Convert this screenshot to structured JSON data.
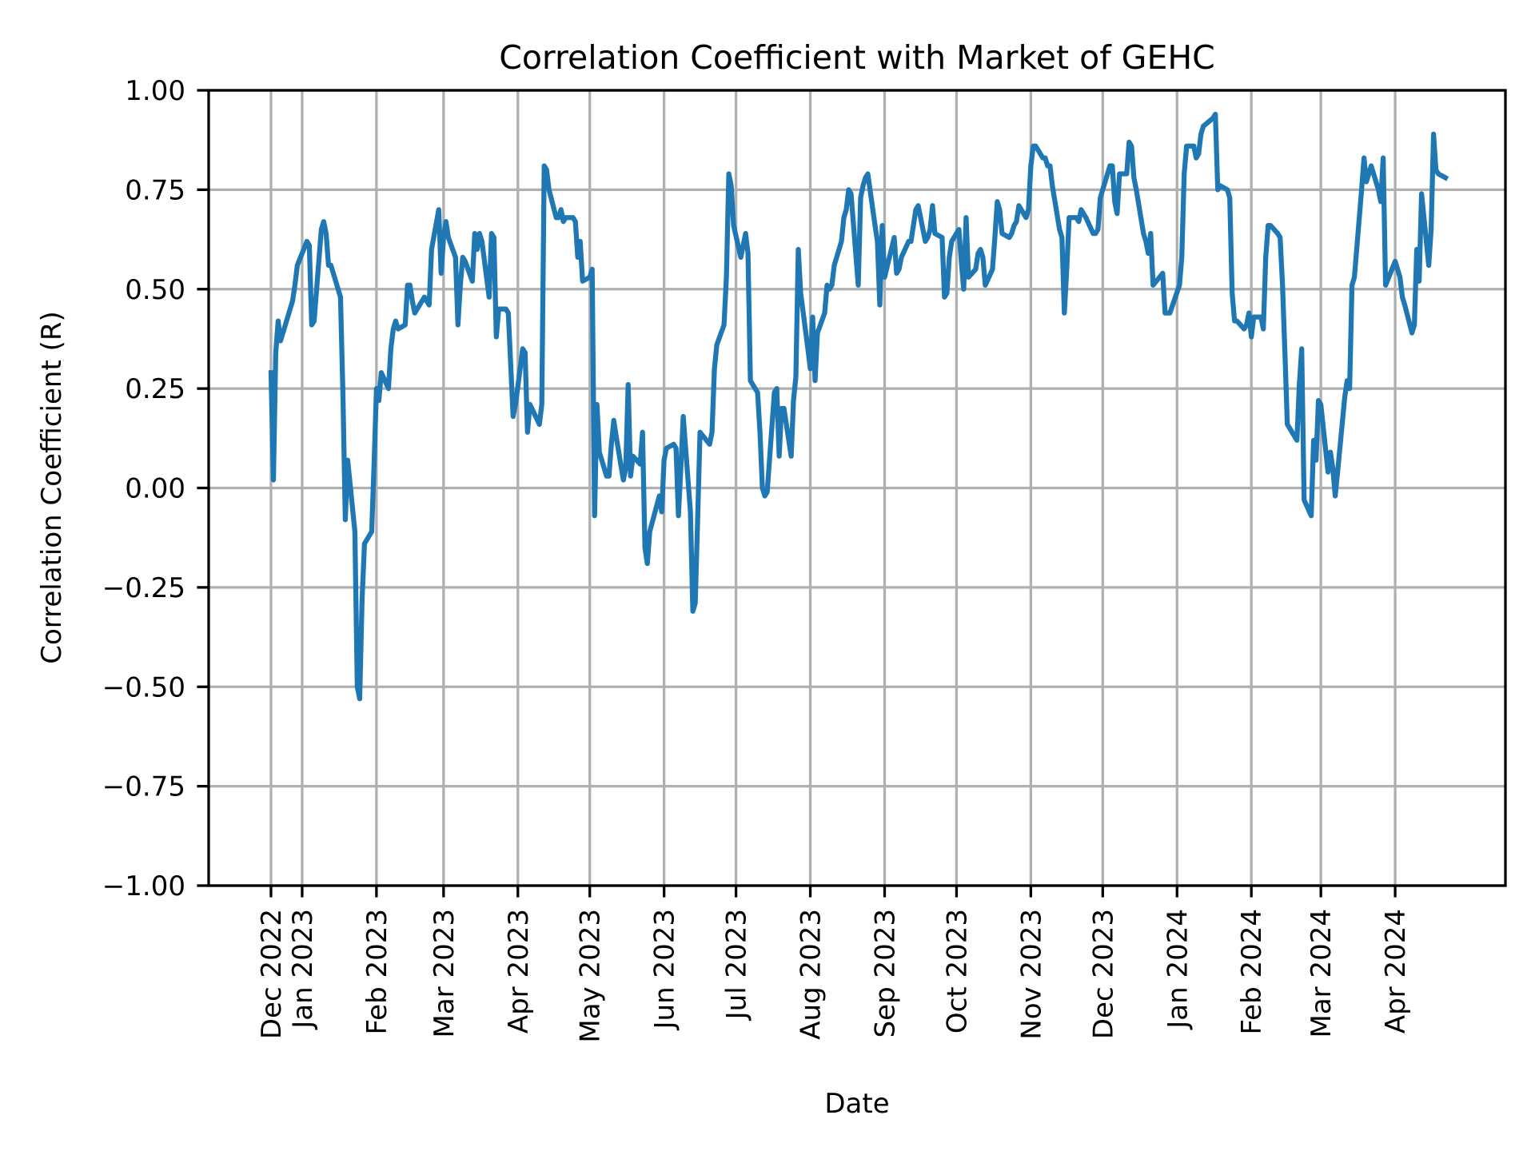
{
  "chart_data": {
    "type": "line",
    "title": "Correlation Coefficient with Market of GEHC",
    "xlabel": "Date",
    "ylabel": "Correlation Coefficient (R)",
    "xlim": [
      "2022-11-23",
      "2024-05-17"
    ],
    "ylim": [
      -1.0,
      1.0
    ],
    "grid": true,
    "line_color": "#1f77b4",
    "y_ticks": [
      {
        "value": 1.0,
        "label": "1.00"
      },
      {
        "value": 0.75,
        "label": "0.75"
      },
      {
        "value": 0.5,
        "label": "0.50"
      },
      {
        "value": 0.25,
        "label": "0.25"
      },
      {
        "value": 0.0,
        "label": "0.00"
      },
      {
        "value": -0.25,
        "label": "−0.25"
      },
      {
        "value": -0.5,
        "label": "−0.50"
      },
      {
        "value": -0.75,
        "label": "−0.75"
      },
      {
        "value": -1.0,
        "label": "−1.00"
      }
    ],
    "x_ticks": [
      {
        "date": "2022-12-19",
        "label": "Dec 2022"
      },
      {
        "date": "2023-01-01",
        "label": "Jan 2023"
      },
      {
        "date": "2023-02-01",
        "label": "Feb 2023"
      },
      {
        "date": "2023-03-01",
        "label": "Mar 2023"
      },
      {
        "date": "2023-04-01",
        "label": "Apr 2023"
      },
      {
        "date": "2023-05-01",
        "label": "May 2023"
      },
      {
        "date": "2023-06-01",
        "label": "Jun 2023"
      },
      {
        "date": "2023-07-01",
        "label": "Jul 2023"
      },
      {
        "date": "2023-08-01",
        "label": "Aug 2023"
      },
      {
        "date": "2023-09-01",
        "label": "Sep 2023"
      },
      {
        "date": "2023-10-01",
        "label": "Oct 2023"
      },
      {
        "date": "2023-11-01",
        "label": "Nov 2023"
      },
      {
        "date": "2023-12-01",
        "label": "Dec 2023"
      },
      {
        "date": "2024-01-01",
        "label": "Jan 2024"
      },
      {
        "date": "2024-02-01",
        "label": "Feb 2024"
      },
      {
        "date": "2024-03-01",
        "label": "Mar 2024"
      },
      {
        "date": "2024-04-01",
        "label": "Apr 2024"
      }
    ],
    "x": [
      "2022-12-19",
      "2022-12-20",
      "2022-12-21",
      "2022-12-22",
      "2022-12-23",
      "2022-12-27",
      "2022-12-28",
      "2022-12-29",
      "2022-12-30",
      "2023-01-03",
      "2023-01-04",
      "2023-01-05",
      "2023-01-06",
      "2023-01-09",
      "2023-01-10",
      "2023-01-11",
      "2023-01-12",
      "2023-01-13",
      "2023-01-17",
      "2023-01-18",
      "2023-01-19",
      "2023-01-20",
      "2023-01-23",
      "2023-01-24",
      "2023-01-25",
      "2023-01-26",
      "2023-01-27",
      "2023-01-30",
      "2023-01-31",
      "2023-02-01",
      "2023-02-02",
      "2023-02-03",
      "2023-02-06",
      "2023-02-07",
      "2023-02-08",
      "2023-02-09",
      "2023-02-10",
      "2023-02-13",
      "2023-02-14",
      "2023-02-15",
      "2023-02-16",
      "2023-02-17",
      "2023-02-21",
      "2023-02-22",
      "2023-02-23",
      "2023-02-24",
      "2023-02-27",
      "2023-02-28",
      "2023-03-01",
      "2023-03-02",
      "2023-03-03",
      "2023-03-06",
      "2023-03-07",
      "2023-03-08",
      "2023-03-09",
      "2023-03-10",
      "2023-03-13",
      "2023-03-14",
      "2023-03-15",
      "2023-03-16",
      "2023-03-17",
      "2023-03-20",
      "2023-03-21",
      "2023-03-22",
      "2023-03-23",
      "2023-03-24",
      "2023-03-27",
      "2023-03-28",
      "2023-03-29",
      "2023-03-30",
      "2023-03-31",
      "2023-04-03",
      "2023-04-04",
      "2023-04-05",
      "2023-04-06",
      "2023-04-10",
      "2023-04-11",
      "2023-04-12",
      "2023-04-13",
      "2023-04-14",
      "2023-04-17",
      "2023-04-18",
      "2023-04-19",
      "2023-04-20",
      "2023-04-21",
      "2023-04-24",
      "2023-04-25",
      "2023-04-26",
      "2023-04-27",
      "2023-04-28",
      "2023-05-01",
      "2023-05-02",
      "2023-05-03",
      "2023-05-04",
      "2023-05-05",
      "2023-05-08",
      "2023-05-09",
      "2023-05-10",
      "2023-05-11",
      "2023-05-12",
      "2023-05-15",
      "2023-05-16",
      "2023-05-17",
      "2023-05-18",
      "2023-05-19",
      "2023-05-22",
      "2023-05-23",
      "2023-05-24",
      "2023-05-25",
      "2023-05-26",
      "2023-05-30",
      "2023-05-31",
      "2023-06-01",
      "2023-06-02",
      "2023-06-05",
      "2023-06-06",
      "2023-06-07",
      "2023-06-08",
      "2023-06-09",
      "2023-06-12",
      "2023-06-13",
      "2023-06-14",
      "2023-06-15",
      "2023-06-16",
      "2023-06-20",
      "2023-06-21",
      "2023-06-22",
      "2023-06-23",
      "2023-06-26",
      "2023-06-27",
      "2023-06-28",
      "2023-06-29",
      "2023-06-30",
      "2023-07-03",
      "2023-07-05",
      "2023-07-06",
      "2023-07-07",
      "2023-07-10",
      "2023-07-11",
      "2023-07-12",
      "2023-07-13",
      "2023-07-14",
      "2023-07-17",
      "2023-07-18",
      "2023-07-19",
      "2023-07-20",
      "2023-07-21",
      "2023-07-24",
      "2023-07-25",
      "2023-07-26",
      "2023-07-27",
      "2023-07-28",
      "2023-07-31",
      "2023-08-01",
      "2023-08-02",
      "2023-08-03",
      "2023-08-04",
      "2023-08-07",
      "2023-08-08",
      "2023-08-09",
      "2023-08-10",
      "2023-08-11",
      "2023-08-14",
      "2023-08-15",
      "2023-08-16",
      "2023-08-17",
      "2023-08-18",
      "2023-08-21",
      "2023-08-22",
      "2023-08-23",
      "2023-08-24",
      "2023-08-25",
      "2023-08-28",
      "2023-08-29",
      "2023-08-30",
      "2023-08-31",
      "2023-09-01",
      "2023-09-05",
      "2023-09-06",
      "2023-09-07",
      "2023-09-08",
      "2023-09-11",
      "2023-09-12",
      "2023-09-13",
      "2023-09-14",
      "2023-09-15",
      "2023-09-18",
      "2023-09-19",
      "2023-09-20",
      "2023-09-21",
      "2023-09-22",
      "2023-09-25",
      "2023-09-26",
      "2023-09-27",
      "2023-09-28",
      "2023-09-29",
      "2023-10-02",
      "2023-10-03",
      "2023-10-04",
      "2023-10-05",
      "2023-10-06",
      "2023-10-09",
      "2023-10-10",
      "2023-10-11",
      "2023-10-12",
      "2023-10-13",
      "2023-10-16",
      "2023-10-17",
      "2023-10-18",
      "2023-10-19",
      "2023-10-20",
      "2023-10-23",
      "2023-10-24",
      "2023-10-25",
      "2023-10-26",
      "2023-10-27",
      "2023-10-30",
      "2023-10-31",
      "2023-11-01",
      "2023-11-02",
      "2023-11-03",
      "2023-11-06",
      "2023-11-07",
      "2023-11-08",
      "2023-11-09",
      "2023-11-10",
      "2023-11-13",
      "2023-11-14",
      "2023-11-15",
      "2023-11-16",
      "2023-11-17",
      "2023-11-20",
      "2023-11-21",
      "2023-11-22",
      "2023-11-24",
      "2023-11-27",
      "2023-11-28",
      "2023-11-29",
      "2023-11-30",
      "2023-12-01",
      "2023-12-04",
      "2023-12-05",
      "2023-12-06",
      "2023-12-07",
      "2023-12-08",
      "2023-12-11",
      "2023-12-12",
      "2023-12-13",
      "2023-12-14",
      "2023-12-15",
      "2023-12-18",
      "2023-12-19",
      "2023-12-20",
      "2023-12-21",
      "2023-12-22",
      "2023-12-26",
      "2023-12-27",
      "2023-12-28",
      "2023-12-29",
      "2024-01-02",
      "2024-01-03",
      "2024-01-04",
      "2024-01-05",
      "2024-01-08",
      "2024-01-09",
      "2024-01-10",
      "2024-01-11",
      "2024-01-12",
      "2024-01-16",
      "2024-01-17",
      "2024-01-18",
      "2024-01-19",
      "2024-01-22",
      "2024-01-23",
      "2024-01-24",
      "2024-01-25",
      "2024-01-26",
      "2024-01-29",
      "2024-01-30",
      "2024-01-31",
      "2024-02-01",
      "2024-02-02",
      "2024-02-05",
      "2024-02-06",
      "2024-02-07",
      "2024-02-08",
      "2024-02-09",
      "2024-02-12",
      "2024-02-13",
      "2024-02-14",
      "2024-02-15",
      "2024-02-16",
      "2024-02-20",
      "2024-02-21",
      "2024-02-22",
      "2024-02-23",
      "2024-02-26",
      "2024-02-27",
      "2024-02-28",
      "2024-02-29",
      "2024-03-01",
      "2024-03-04",
      "2024-03-05",
      "2024-03-06",
      "2024-03-07",
      "2024-03-08",
      "2024-03-11",
      "2024-03-12",
      "2024-03-13",
      "2024-03-14",
      "2024-03-15",
      "2024-03-18",
      "2024-03-19",
      "2024-03-20",
      "2024-03-21",
      "2024-03-22",
      "2024-03-25",
      "2024-03-26",
      "2024-03-27",
      "2024-03-28",
      "2024-04-01",
      "2024-04-02",
      "2024-04-03",
      "2024-04-04",
      "2024-04-05",
      "2024-04-08",
      "2024-04-09",
      "2024-04-10",
      "2024-04-11",
      "2024-04-12",
      "2024-04-15",
      "2024-04-16",
      "2024-04-17",
      "2024-04-18",
      "2024-04-19",
      "2024-04-22"
    ],
    "y": [
      0.29,
      0.02,
      0.34,
      0.42,
      0.37,
      0.45,
      0.47,
      0.51,
      0.56,
      0.62,
      0.61,
      0.41,
      0.42,
      0.65,
      0.67,
      0.64,
      0.56,
      0.56,
      0.48,
      0.24,
      -0.08,
      0.07,
      -0.11,
      -0.5,
      -0.53,
      -0.28,
      -0.14,
      -0.11,
      0.06,
      0.25,
      0.22,
      0.29,
      0.25,
      0.35,
      0.4,
      0.42,
      0.4,
      0.41,
      0.51,
      0.51,
      0.47,
      0.44,
      0.48,
      0.47,
      0.46,
      0.6,
      0.7,
      0.54,
      0.63,
      0.67,
      0.63,
      0.58,
      0.41,
      0.51,
      0.58,
      0.57,
      0.52,
      0.64,
      0.6,
      0.64,
      0.62,
      0.48,
      0.64,
      0.63,
      0.38,
      0.45,
      0.45,
      0.44,
      0.31,
      0.18,
      0.21,
      0.35,
      0.34,
      0.14,
      0.21,
      0.16,
      0.21,
      0.81,
      0.8,
      0.75,
      0.68,
      0.68,
      0.7,
      0.67,
      0.68,
      0.68,
      0.67,
      0.58,
      0.62,
      0.52,
      0.53,
      0.55,
      -0.07,
      0.21,
      0.09,
      0.03,
      0.03,
      0.11,
      0.17,
      0.13,
      0.02,
      0.05,
      0.26,
      0.03,
      0.08,
      0.06,
      0.14,
      -0.15,
      -0.19,
      -0.11,
      -0.02,
      -0.06,
      0.07,
      0.1,
      0.11,
      0.1,
      -0.07,
      0.05,
      0.18,
      -0.06,
      -0.31,
      -0.29,
      -0.08,
      0.14,
      0.11,
      0.14,
      0.3,
      0.36,
      0.41,
      0.53,
      0.79,
      0.76,
      0.66,
      0.58,
      0.64,
      0.59,
      0.27,
      0.24,
      0.14,
      0.0,
      -0.02,
      -0.01,
      0.24,
      0.25,
      0.08,
      0.2,
      0.2,
      0.08,
      0.22,
      0.28,
      0.6,
      0.49,
      0.35,
      0.3,
      0.43,
      0.27,
      0.39,
      0.44,
      0.51,
      0.5,
      0.51,
      0.56,
      0.62,
      0.68,
      0.7,
      0.75,
      0.74,
      0.51,
      0.73,
      0.76,
      0.78,
      0.79,
      0.66,
      0.62,
      0.46,
      0.66,
      0.53,
      0.63,
      0.54,
      0.55,
      0.58,
      0.62,
      0.62,
      0.66,
      0.7,
      0.71,
      0.62,
      0.63,
      0.65,
      0.71,
      0.64,
      0.63,
      0.48,
      0.49,
      0.58,
      0.62,
      0.65,
      0.57,
      0.5,
      0.68,
      0.53,
      0.55,
      0.59,
      0.6,
      0.58,
      0.51,
      0.55,
      0.63,
      0.72,
      0.7,
      0.64,
      0.63,
      0.64,
      0.66,
      0.67,
      0.71,
      0.68,
      0.7,
      0.81,
      0.86,
      0.86,
      0.83,
      0.83,
      0.81,
      0.81,
      0.76,
      0.65,
      0.63,
      0.44,
      0.55,
      0.68,
      0.68,
      0.67,
      0.7,
      0.68,
      0.64,
      0.64,
      0.65,
      0.73,
      0.75,
      0.81,
      0.81,
      0.72,
      0.69,
      0.79,
      0.79,
      0.87,
      0.86,
      0.78,
      0.75,
      0.64,
      0.62,
      0.59,
      0.64,
      0.51,
      0.54,
      0.44,
      0.44,
      0.44,
      0.51,
      0.58,
      0.79,
      0.86,
      0.86,
      0.83,
      0.84,
      0.89,
      0.91,
      0.93,
      0.94,
      0.75,
      0.76,
      0.75,
      0.73,
      0.49,
      0.42,
      0.42,
      0.4,
      0.41,
      0.44,
      0.38,
      0.43,
      0.43,
      0.4,
      0.58,
      0.66,
      0.66,
      0.64,
      0.63,
      0.51,
      0.34,
      0.16,
      0.12,
      0.26,
      0.35,
      -0.03,
      -0.07,
      0.12,
      0.07,
      0.22,
      0.21,
      0.04,
      0.09,
      0.05,
      -0.02,
      0.04,
      0.23,
      0.27,
      0.25,
      0.51,
      0.53,
      0.75,
      0.83,
      0.77,
      0.79,
      0.81,
      0.75,
      0.72,
      0.83,
      0.51,
      0.57,
      0.55,
      0.53,
      0.48,
      0.46,
      0.39,
      0.41,
      0.6,
      0.52,
      0.74,
      0.56,
      0.65,
      0.89,
      0.8,
      0.79,
      0.78
    ]
  }
}
